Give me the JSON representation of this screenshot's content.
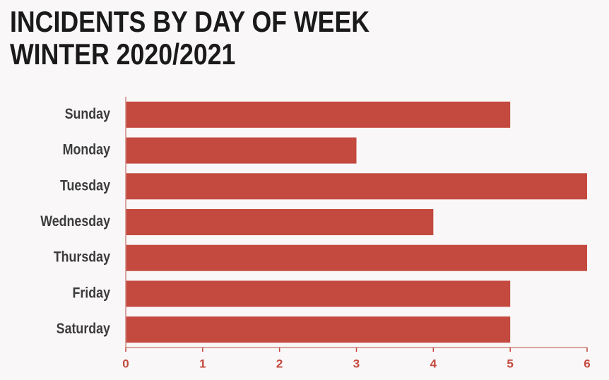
{
  "chart_data": {
    "type": "hbar",
    "title": "INCIDENTS BY DAY OF WEEK",
    "subtitle": "WINTER 2020/2021",
    "categories": [
      "Sunday",
      "Monday",
      "Tuesday",
      "Wednesday",
      "Thursday",
      "Friday",
      "Saturday"
    ],
    "values": [
      5,
      3,
      6,
      4,
      6,
      5,
      5
    ],
    "color": "#c4493e",
    "xlim": [
      0,
      6
    ],
    "xticks": [
      0,
      1,
      2,
      3,
      4,
      5,
      6
    ]
  }
}
